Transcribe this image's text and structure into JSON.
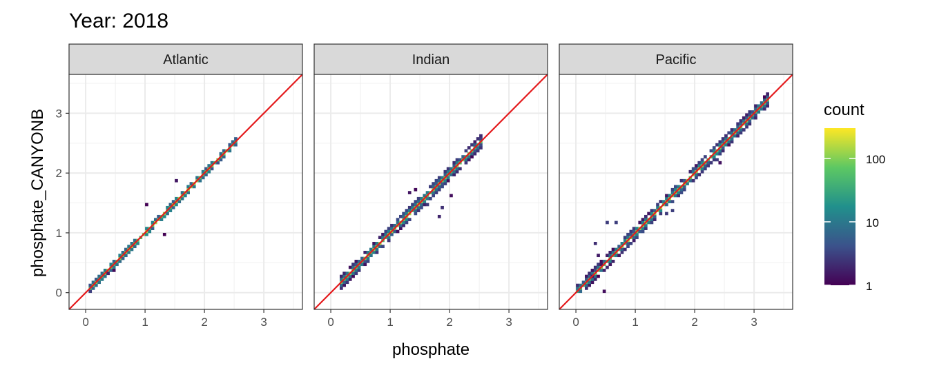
{
  "chart_data": {
    "type": "heatmap",
    "subtype": "2d-bin-count",
    "title": "Year: 2018",
    "xlabel": "phosphate",
    "ylabel": "phosphate_CANYONB",
    "xlim": [
      -0.28,
      3.65
    ],
    "ylim": [
      -0.28,
      3.65
    ],
    "x_ticks": [
      0,
      1,
      2,
      3
    ],
    "y_ticks": [
      0,
      1,
      2,
      3
    ],
    "grid": true,
    "reference_line": {
      "slope": 1,
      "intercept": 0,
      "color": "#e41a1c"
    },
    "color_scale": {
      "name": "count",
      "palette": "viridis",
      "transform": "log10",
      "range": [
        1,
        300
      ],
      "breaks": [
        1,
        10,
        100
      ],
      "break_labels": [
        "1",
        "10",
        "100"
      ],
      "colors": [
        "#440154",
        "#3b528b",
        "#21908c",
        "#5dc863",
        "#fde725"
      ]
    },
    "panels": [
      {
        "name": "Atlantic",
        "x_range": [
          0.05,
          2.5
        ],
        "spread": 0.07,
        "outliers": [
          [
            1.0,
            1.45
          ],
          [
            1.3,
            0.95
          ],
          [
            0.35,
            0.3
          ],
          [
            0.45,
            0.35
          ],
          [
            1.5,
            1.85
          ]
        ]
      },
      {
        "name": "Indian",
        "x_range": [
          0.15,
          2.5
        ],
        "spread": 0.08,
        "outliers": [
          [
            1.3,
            1.65
          ],
          [
            1.4,
            1.7
          ],
          [
            1.85,
            1.4
          ],
          [
            1.8,
            1.25
          ],
          [
            2.0,
            1.6
          ],
          [
            1.6,
            1.45
          ]
        ]
      },
      {
        "name": "Pacific",
        "x_range": [
          0.0,
          3.2
        ],
        "spread": 0.08,
        "outliers": [
          [
            0.3,
            0.8
          ],
          [
            0.35,
            0.6
          ],
          [
            0.5,
            1.15
          ],
          [
            0.65,
            1.15
          ],
          [
            0.4,
            0.45
          ],
          [
            1.5,
            1.3
          ],
          [
            1.6,
            1.35
          ],
          [
            2.35,
            2.2
          ],
          [
            2.4,
            2.15
          ],
          [
            0.25,
            0.25
          ],
          [
            0.45,
            0.0
          ]
        ]
      }
    ]
  }
}
